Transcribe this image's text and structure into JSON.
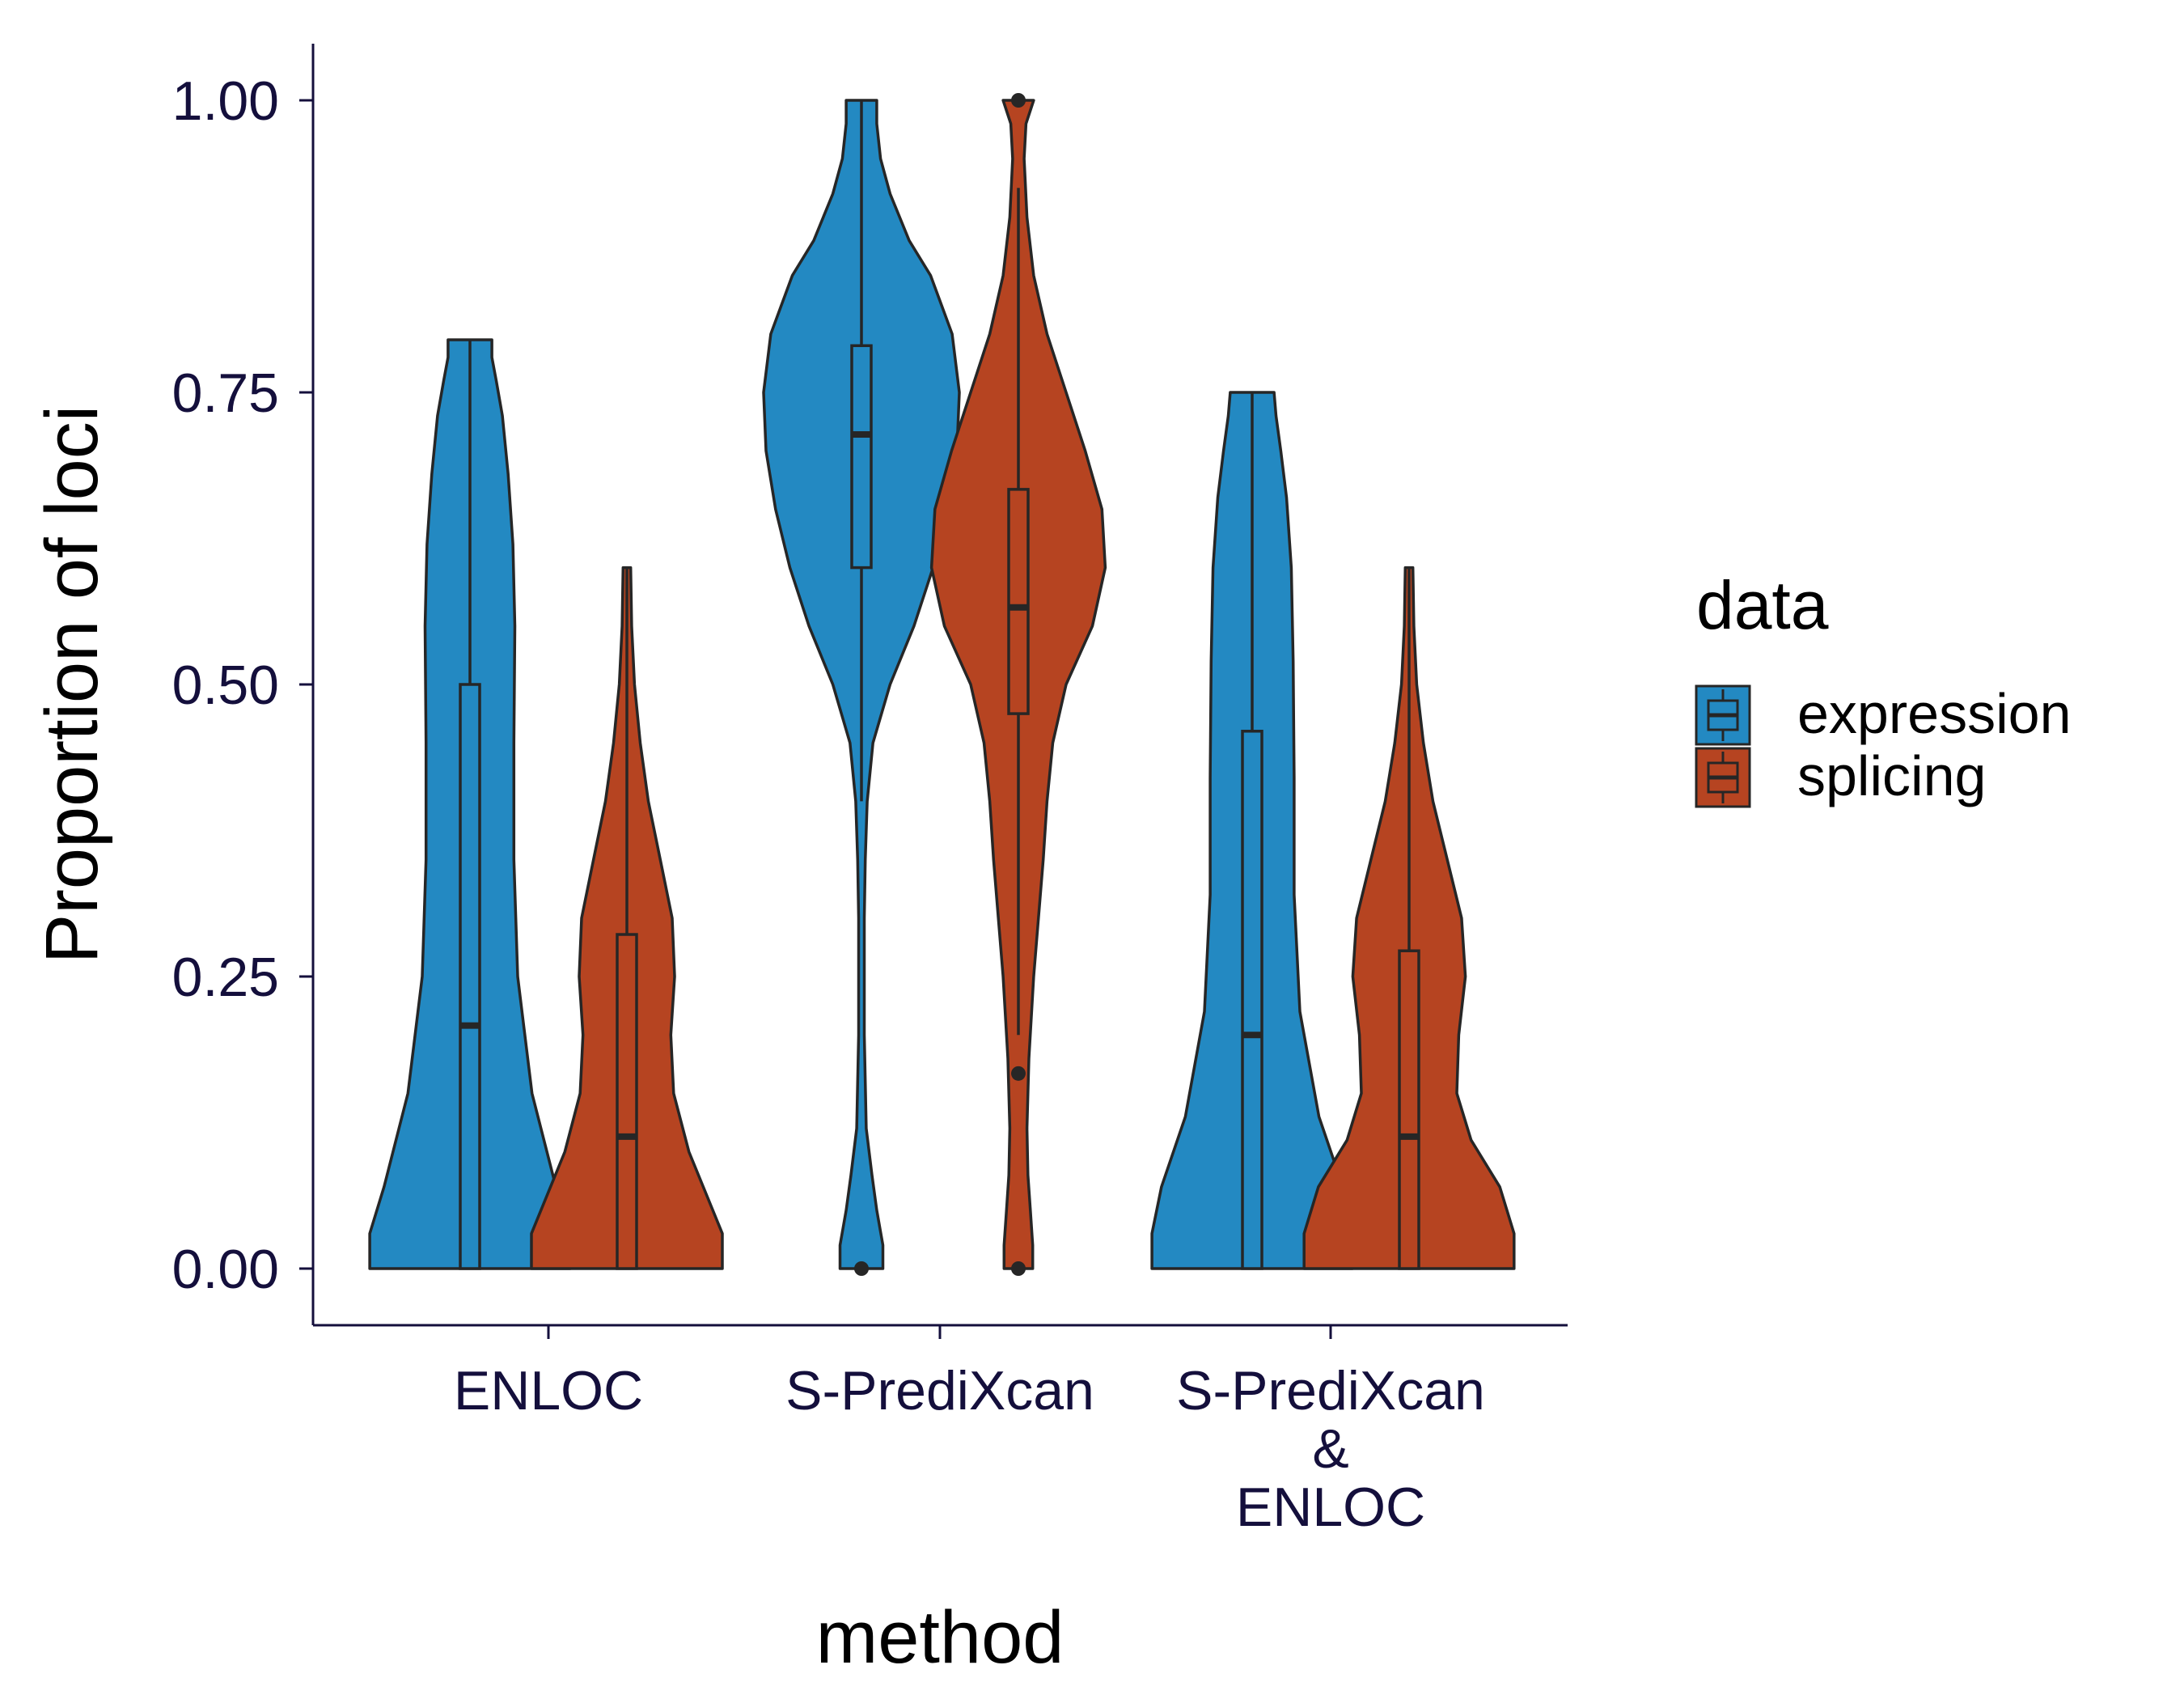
{
  "colors": {
    "expression": "#2389c2",
    "splicing": "#b64421",
    "outline": "#262626",
    "axis": "#140f3c"
  },
  "chart_data": {
    "type": "violin",
    "xlabel": "method",
    "ylabel": "Proportion of loci",
    "ylim": [
      -0.05,
      1.05
    ],
    "yticks": [
      "0.00",
      "0.25",
      "0.50",
      "0.75",
      "1.00"
    ],
    "categories": [
      {
        "lines": [
          "ENLOC"
        ]
      },
      {
        "lines": [
          "S-PrediXcan"
        ]
      },
      {
        "lines": [
          "S-PrediXcan",
          "&",
          "ENLOC"
        ]
      }
    ],
    "legend": {
      "title": "data",
      "position": "right",
      "items": [
        {
          "key": "expression",
          "label": "expression"
        },
        {
          "key": "splicing",
          "label": "splicing"
        }
      ]
    },
    "series": [
      {
        "key": "expression",
        "name": "expression",
        "groups": [
          {
            "category": "ENLOC",
            "min": 0.0,
            "q1": 0.0,
            "median": 0.208,
            "q3": 0.5,
            "max": 0.795,
            "outliers": [],
            "density": [
              [
                0.0,
                0.21
              ],
              [
                0.03,
                0.21
              ],
              [
                0.07,
                0.18
              ],
              [
                0.15,
                0.13
              ],
              [
                0.25,
                0.1
              ],
              [
                0.35,
                0.092
              ],
              [
                0.45,
                0.092
              ],
              [
                0.55,
                0.094
              ],
              [
                0.62,
                0.09
              ],
              [
                0.68,
                0.08
              ],
              [
                0.73,
                0.068
              ],
              [
                0.76,
                0.055
              ],
              [
                0.78,
                0.046
              ],
              [
                0.795,
                0.046
              ]
            ]
          },
          {
            "category": "S-PrediXcan",
            "min": 0.4,
            "q1": 0.6,
            "median": 0.714,
            "q3": 0.79,
            "max": 1.0,
            "outliers": [
              0.0
            ],
            "density": [
              [
                0.0,
                0.045
              ],
              [
                0.02,
                0.045
              ],
              [
                0.05,
                0.032
              ],
              [
                0.08,
                0.022
              ],
              [
                0.12,
                0.01
              ],
              [
                0.2,
                0.006
              ],
              [
                0.3,
                0.006
              ],
              [
                0.35,
                0.008
              ],
              [
                0.4,
                0.012
              ],
              [
                0.45,
                0.024
              ],
              [
                0.5,
                0.06
              ],
              [
                0.55,
                0.11
              ],
              [
                0.6,
                0.15
              ],
              [
                0.65,
                0.18
              ],
              [
                0.7,
                0.2
              ],
              [
                0.75,
                0.205
              ],
              [
                0.8,
                0.19
              ],
              [
                0.85,
                0.145
              ],
              [
                0.88,
                0.1
              ],
              [
                0.92,
                0.06
              ],
              [
                0.95,
                0.04
              ],
              [
                0.98,
                0.032
              ],
              [
                1.0,
                0.032
              ]
            ]
          },
          {
            "category": "S-PrediXcan & ENLOC",
            "min": 0.0,
            "q1": 0.0,
            "median": 0.2,
            "q3": 0.46,
            "max": 0.75,
            "outliers": [],
            "density": [
              [
                0.0,
                0.21
              ],
              [
                0.03,
                0.21
              ],
              [
                0.07,
                0.19
              ],
              [
                0.13,
                0.14
              ],
              [
                0.22,
                0.1
              ],
              [
                0.32,
                0.088
              ],
              [
                0.42,
                0.088
              ],
              [
                0.52,
                0.086
              ],
              [
                0.6,
                0.082
              ],
              [
                0.66,
                0.072
              ],
              [
                0.7,
                0.06
              ],
              [
                0.73,
                0.05
              ],
              [
                0.75,
                0.046
              ]
            ]
          }
        ]
      },
      {
        "key": "splicing",
        "name": "splicing",
        "groups": [
          {
            "category": "ENLOC",
            "min": 0.0,
            "q1": 0.0,
            "median": 0.113,
            "q3": 0.286,
            "max": 0.6,
            "outliers": [],
            "density": [
              [
                0.0,
                0.2
              ],
              [
                0.03,
                0.2
              ],
              [
                0.06,
                0.17
              ],
              [
                0.1,
                0.13
              ],
              [
                0.15,
                0.098
              ],
              [
                0.2,
                0.092
              ],
              [
                0.25,
                0.1
              ],
              [
                0.3,
                0.095
              ],
              [
                0.35,
                0.07
              ],
              [
                0.4,
                0.045
              ],
              [
                0.45,
                0.028
              ],
              [
                0.5,
                0.016
              ],
              [
                0.55,
                0.01
              ],
              [
                0.6,
                0.008
              ]
            ]
          },
          {
            "category": "S-PrediXcan",
            "min": 0.2,
            "q1": 0.475,
            "median": 0.566,
            "q3": 0.667,
            "max": 0.925,
            "outliers": [
              0.0,
              0.167,
              1.0
            ],
            "density": [
              [
                0.0,
                0.03
              ],
              [
                0.02,
                0.03
              ],
              [
                0.05,
                0.025
              ],
              [
                0.08,
                0.02
              ],
              [
                0.12,
                0.018
              ],
              [
                0.18,
                0.022
              ],
              [
                0.25,
                0.032
              ],
              [
                0.3,
                0.042
              ],
              [
                0.35,
                0.052
              ],
              [
                0.4,
                0.06
              ],
              [
                0.45,
                0.072
              ],
              [
                0.5,
                0.1
              ],
              [
                0.55,
                0.155
              ],
              [
                0.6,
                0.182
              ],
              [
                0.65,
                0.175
              ],
              [
                0.7,
                0.14
              ],
              [
                0.75,
                0.1
              ],
              [
                0.8,
                0.06
              ],
              [
                0.85,
                0.032
              ],
              [
                0.9,
                0.018
              ],
              [
                0.95,
                0.012
              ],
              [
                0.98,
                0.016
              ],
              [
                1.0,
                0.032
              ]
            ]
          },
          {
            "category": "S-PrediXcan & ENLOC",
            "min": 0.0,
            "q1": 0.0,
            "median": 0.113,
            "q3": 0.272,
            "max": 0.6,
            "outliers": [],
            "density": [
              [
                0.0,
                0.22
              ],
              [
                0.03,
                0.22
              ],
              [
                0.07,
                0.19
              ],
              [
                0.11,
                0.13
              ],
              [
                0.15,
                0.1
              ],
              [
                0.2,
                0.104
              ],
              [
                0.25,
                0.118
              ],
              [
                0.3,
                0.11
              ],
              [
                0.35,
                0.08
              ],
              [
                0.4,
                0.05
              ],
              [
                0.45,
                0.03
              ],
              [
                0.5,
                0.016
              ],
              [
                0.55,
                0.01
              ],
              [
                0.6,
                0.008
              ]
            ]
          }
        ]
      }
    ]
  }
}
